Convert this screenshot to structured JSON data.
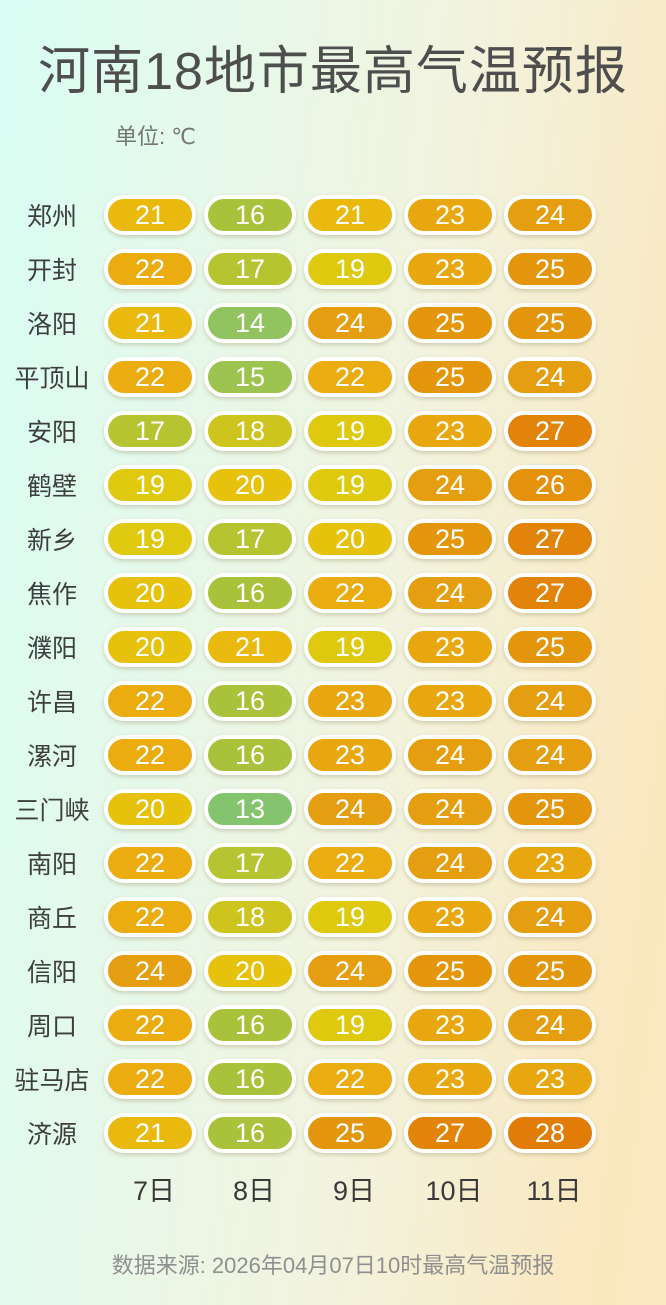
{
  "title": "河南18地市最高气温预报",
  "unit_label": "单位: ℃",
  "footer": "数据来源: 2026年04月07日10时最高气温预报",
  "chart_data": {
    "type": "heatmap",
    "title": "河南18地市最高气温预报",
    "unit": "℃",
    "columns": [
      "7日",
      "8日",
      "9日",
      "10日",
      "11日"
    ],
    "rows": [
      {
        "city": "郑州",
        "values": [
          21,
          16,
          21,
          23,
          24
        ]
      },
      {
        "city": "开封",
        "values": [
          22,
          17,
          19,
          23,
          25
        ]
      },
      {
        "city": "洛阳",
        "values": [
          21,
          14,
          24,
          25,
          25
        ]
      },
      {
        "city": "平顶山",
        "values": [
          22,
          15,
          22,
          25,
          24
        ]
      },
      {
        "city": "安阳",
        "values": [
          17,
          18,
          19,
          23,
          27
        ]
      },
      {
        "city": "鹤壁",
        "values": [
          19,
          20,
          19,
          24,
          26
        ]
      },
      {
        "city": "新乡",
        "values": [
          19,
          17,
          20,
          25,
          27
        ]
      },
      {
        "city": "焦作",
        "values": [
          20,
          16,
          22,
          24,
          27
        ]
      },
      {
        "city": "濮阳",
        "values": [
          20,
          21,
          19,
          23,
          25
        ]
      },
      {
        "city": "许昌",
        "values": [
          22,
          16,
          23,
          23,
          24
        ]
      },
      {
        "city": "漯河",
        "values": [
          22,
          16,
          23,
          24,
          24
        ]
      },
      {
        "city": "三门峡",
        "values": [
          20,
          13,
          24,
          24,
          25
        ]
      },
      {
        "city": "南阳",
        "values": [
          22,
          17,
          22,
          24,
          23
        ]
      },
      {
        "city": "商丘",
        "values": [
          22,
          18,
          19,
          23,
          24
        ]
      },
      {
        "city": "信阳",
        "values": [
          24,
          20,
          24,
          25,
          25
        ]
      },
      {
        "city": "周口",
        "values": [
          22,
          16,
          19,
          23,
          24
        ]
      },
      {
        "city": "驻马店",
        "values": [
          22,
          16,
          22,
          23,
          23
        ]
      },
      {
        "city": "济源",
        "values": [
          21,
          16,
          25,
          27,
          28
        ]
      }
    ],
    "color_scale": {
      "13": "#85c46e",
      "14": "#91c45e",
      "15": "#9dc350",
      "16": "#aac23b",
      "17": "#b6c432",
      "18": "#cdc41d",
      "19": "#dfc90e",
      "20": "#e6c20d",
      "21": "#e9b90e",
      "22": "#eaac0e",
      "23": "#e8a70e",
      "24": "#e59e10",
      "25": "#e3960b",
      "26": "#e4910c",
      "27": "#e28409",
      "28": "#e17d07"
    },
    "background_colors": {
      "left": "#d9fef4",
      "middle": "#f2f3de",
      "right": "#fae7be"
    },
    "legend_position": "none",
    "grid": false
  }
}
